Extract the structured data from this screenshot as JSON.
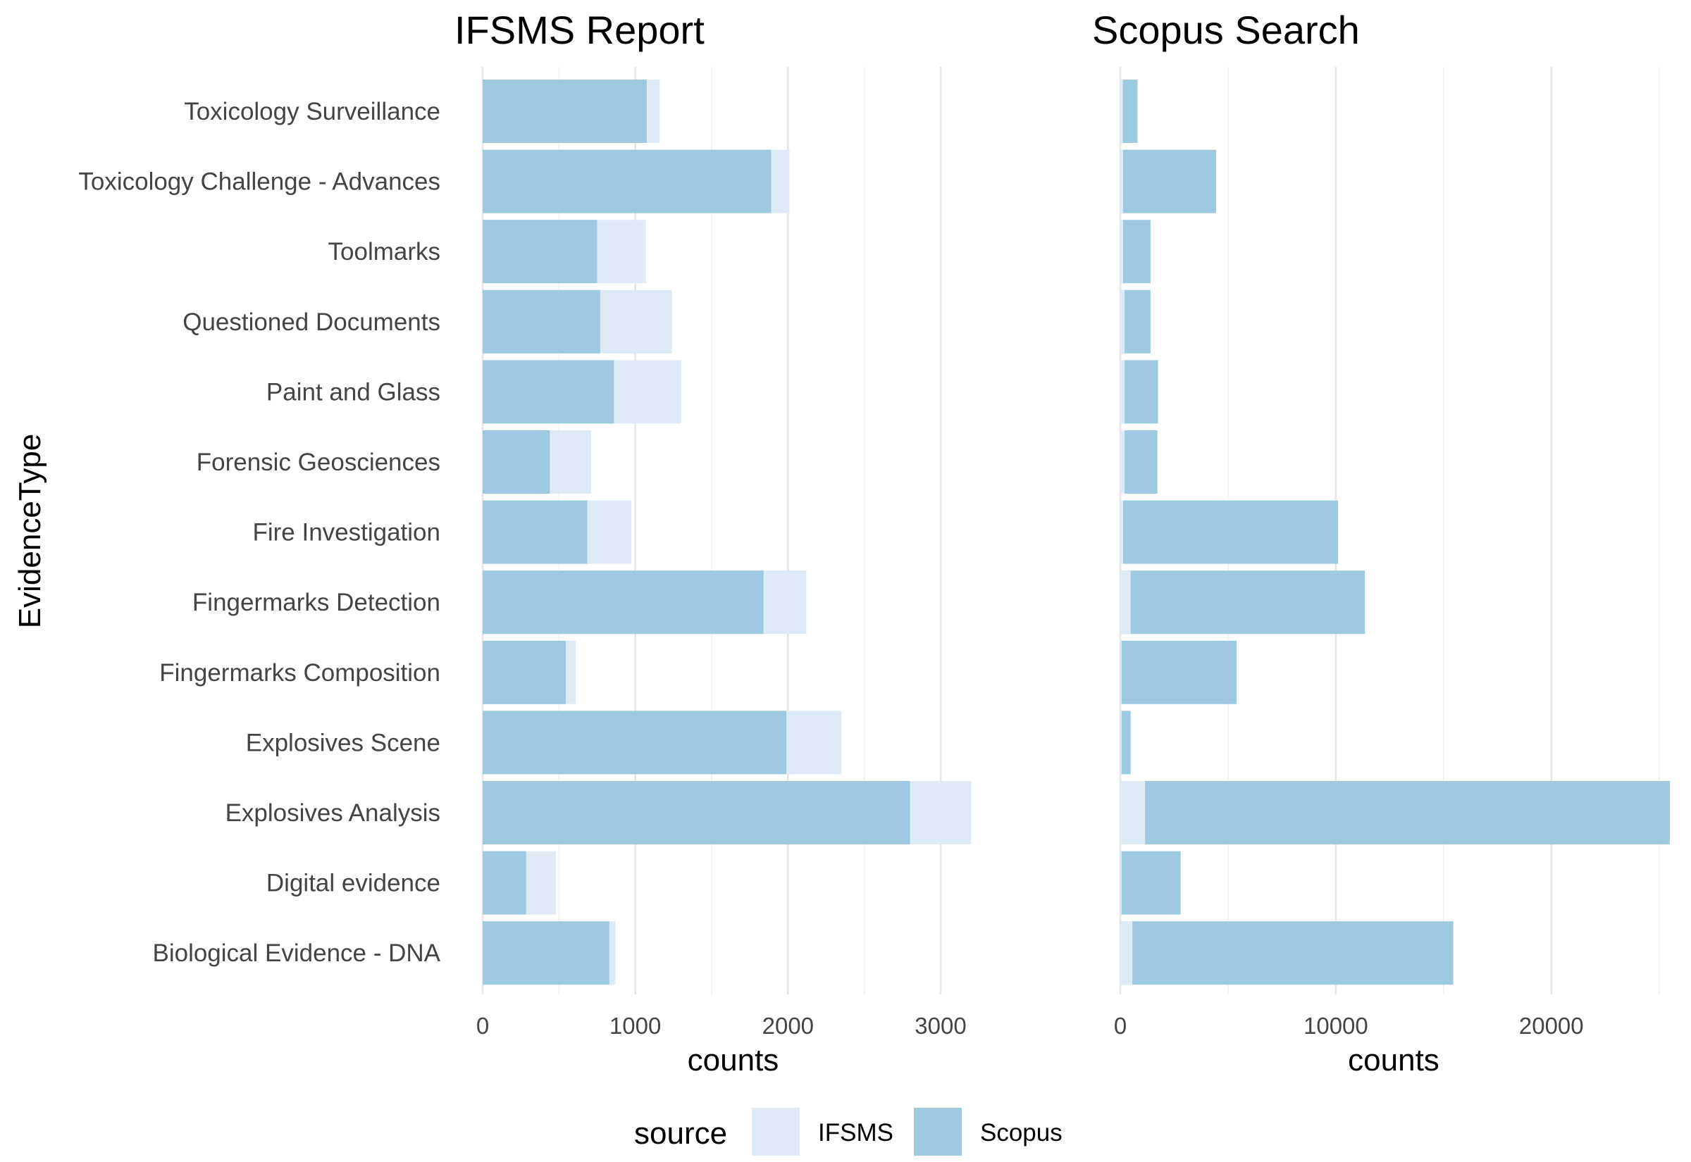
{
  "chart_data": {
    "type": "bar",
    "orientation": "horizontal",
    "position": "overlay",
    "y_label": "EvidenceType",
    "legend": {
      "title": "source",
      "placement": "bottom",
      "items": [
        {
          "name": "IFSMS",
          "color": "#deebf7"
        },
        {
          "name": "Scopus",
          "color": "#9ecae1"
        }
      ]
    },
    "categories": [
      "Toxicology Surveillance",
      "Toxicology Challenge - Advances",
      "Toolmarks",
      "Questioned Documents",
      "Paint and Glass",
      "Forensic Geosciences",
      "Fire Investigation",
      "Fingermarks Detection",
      "Fingermarks Composition",
      "Explosives Scene",
      "Explosives Analysis",
      "Digital evidence",
      "Biological Evidence - DNA"
    ],
    "panels": [
      {
        "title": "IFSMS Report",
        "xlabel": "counts",
        "xlim": [
          0,
          3300
        ],
        "ticks": [
          0,
          1000,
          2000,
          3000
        ],
        "tick_labels": [
          "0",
          "1000",
          "2000",
          "3000"
        ],
        "minor_ticks": [
          500,
          1500,
          2500
        ],
        "series": [
          {
            "name": "IFSMS",
            "values": [
              1160,
              2010,
              1070,
              1240,
              1300,
              710,
              975,
              2120,
              610,
              2350,
              3200,
              480,
              870
            ]
          },
          {
            "name": "Scopus",
            "values": [
              1075,
              1890,
              750,
              770,
              860,
              440,
              685,
              1840,
              545,
              1990,
              2800,
              285,
              830
            ]
          }
        ]
      },
      {
        "title": "Scopus Search",
        "xlabel": "counts",
        "xlim": [
          0,
          25500
        ],
        "ticks": [
          0,
          10000,
          20000
        ],
        "tick_labels": [
          "0",
          "10000",
          "20000"
        ],
        "minor_ticks": [
          5000,
          15000,
          25000
        ],
        "series": [
          {
            "name": "Scopus",
            "values": [
              800,
              4450,
              1400,
              1400,
              1750,
              1720,
              10100,
              11350,
              5400,
              480,
              25500,
              2800,
              15450
            ]
          },
          {
            "name": "IFSMS",
            "values": [
              120,
              130,
              130,
              200,
              200,
              200,
              130,
              480,
              60,
              60,
              1150,
              60,
              560
            ]
          }
        ]
      }
    ]
  }
}
